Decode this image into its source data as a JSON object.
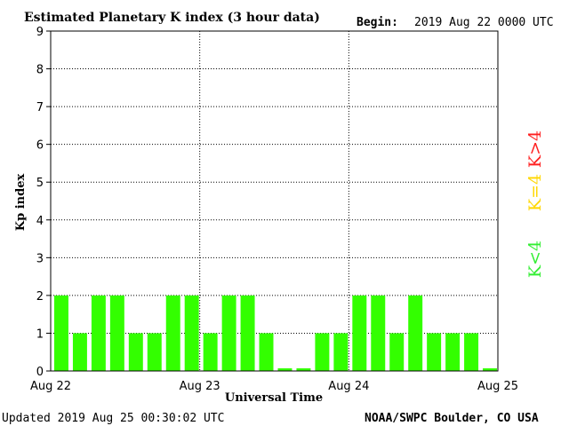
{
  "header": {
    "title": "Estimated Planetary K index (3 hour data)",
    "begin_label": "Begin:",
    "begin_value": "2019 Aug 22 0000 UTC"
  },
  "footer": {
    "updated": "Updated 2019 Aug 25 00:30:02 UTC",
    "source": "NOAA/SWPC Boulder, CO USA"
  },
  "legend": [
    {
      "text": "K>4",
      "color": "#ff2020"
    },
    {
      "text": "K=4",
      "color": "#ffd700"
    },
    {
      "text": "K<4",
      "color": "#33ee33"
    }
  ],
  "chart_data": {
    "type": "bar",
    "title": "Estimated Planetary K index (3 hour data)",
    "xlabel": "Universal Time",
    "ylabel": "Kp index",
    "ylim": [
      0,
      9
    ],
    "yticks": [
      "0",
      "1",
      "2",
      "3",
      "4",
      "5",
      "6",
      "7",
      "8",
      "9"
    ],
    "xticks": [
      "Aug 22",
      "Aug 23",
      "Aug 24",
      "Aug 25"
    ],
    "grid": true,
    "bar_color": "#33ff00",
    "values": [
      2,
      1,
      2,
      2,
      1,
      1,
      2,
      2,
      1,
      2,
      2,
      1,
      0.07,
      0.07,
      1,
      1,
      2,
      2,
      1,
      2,
      1,
      1,
      1,
      0.07
    ]
  }
}
